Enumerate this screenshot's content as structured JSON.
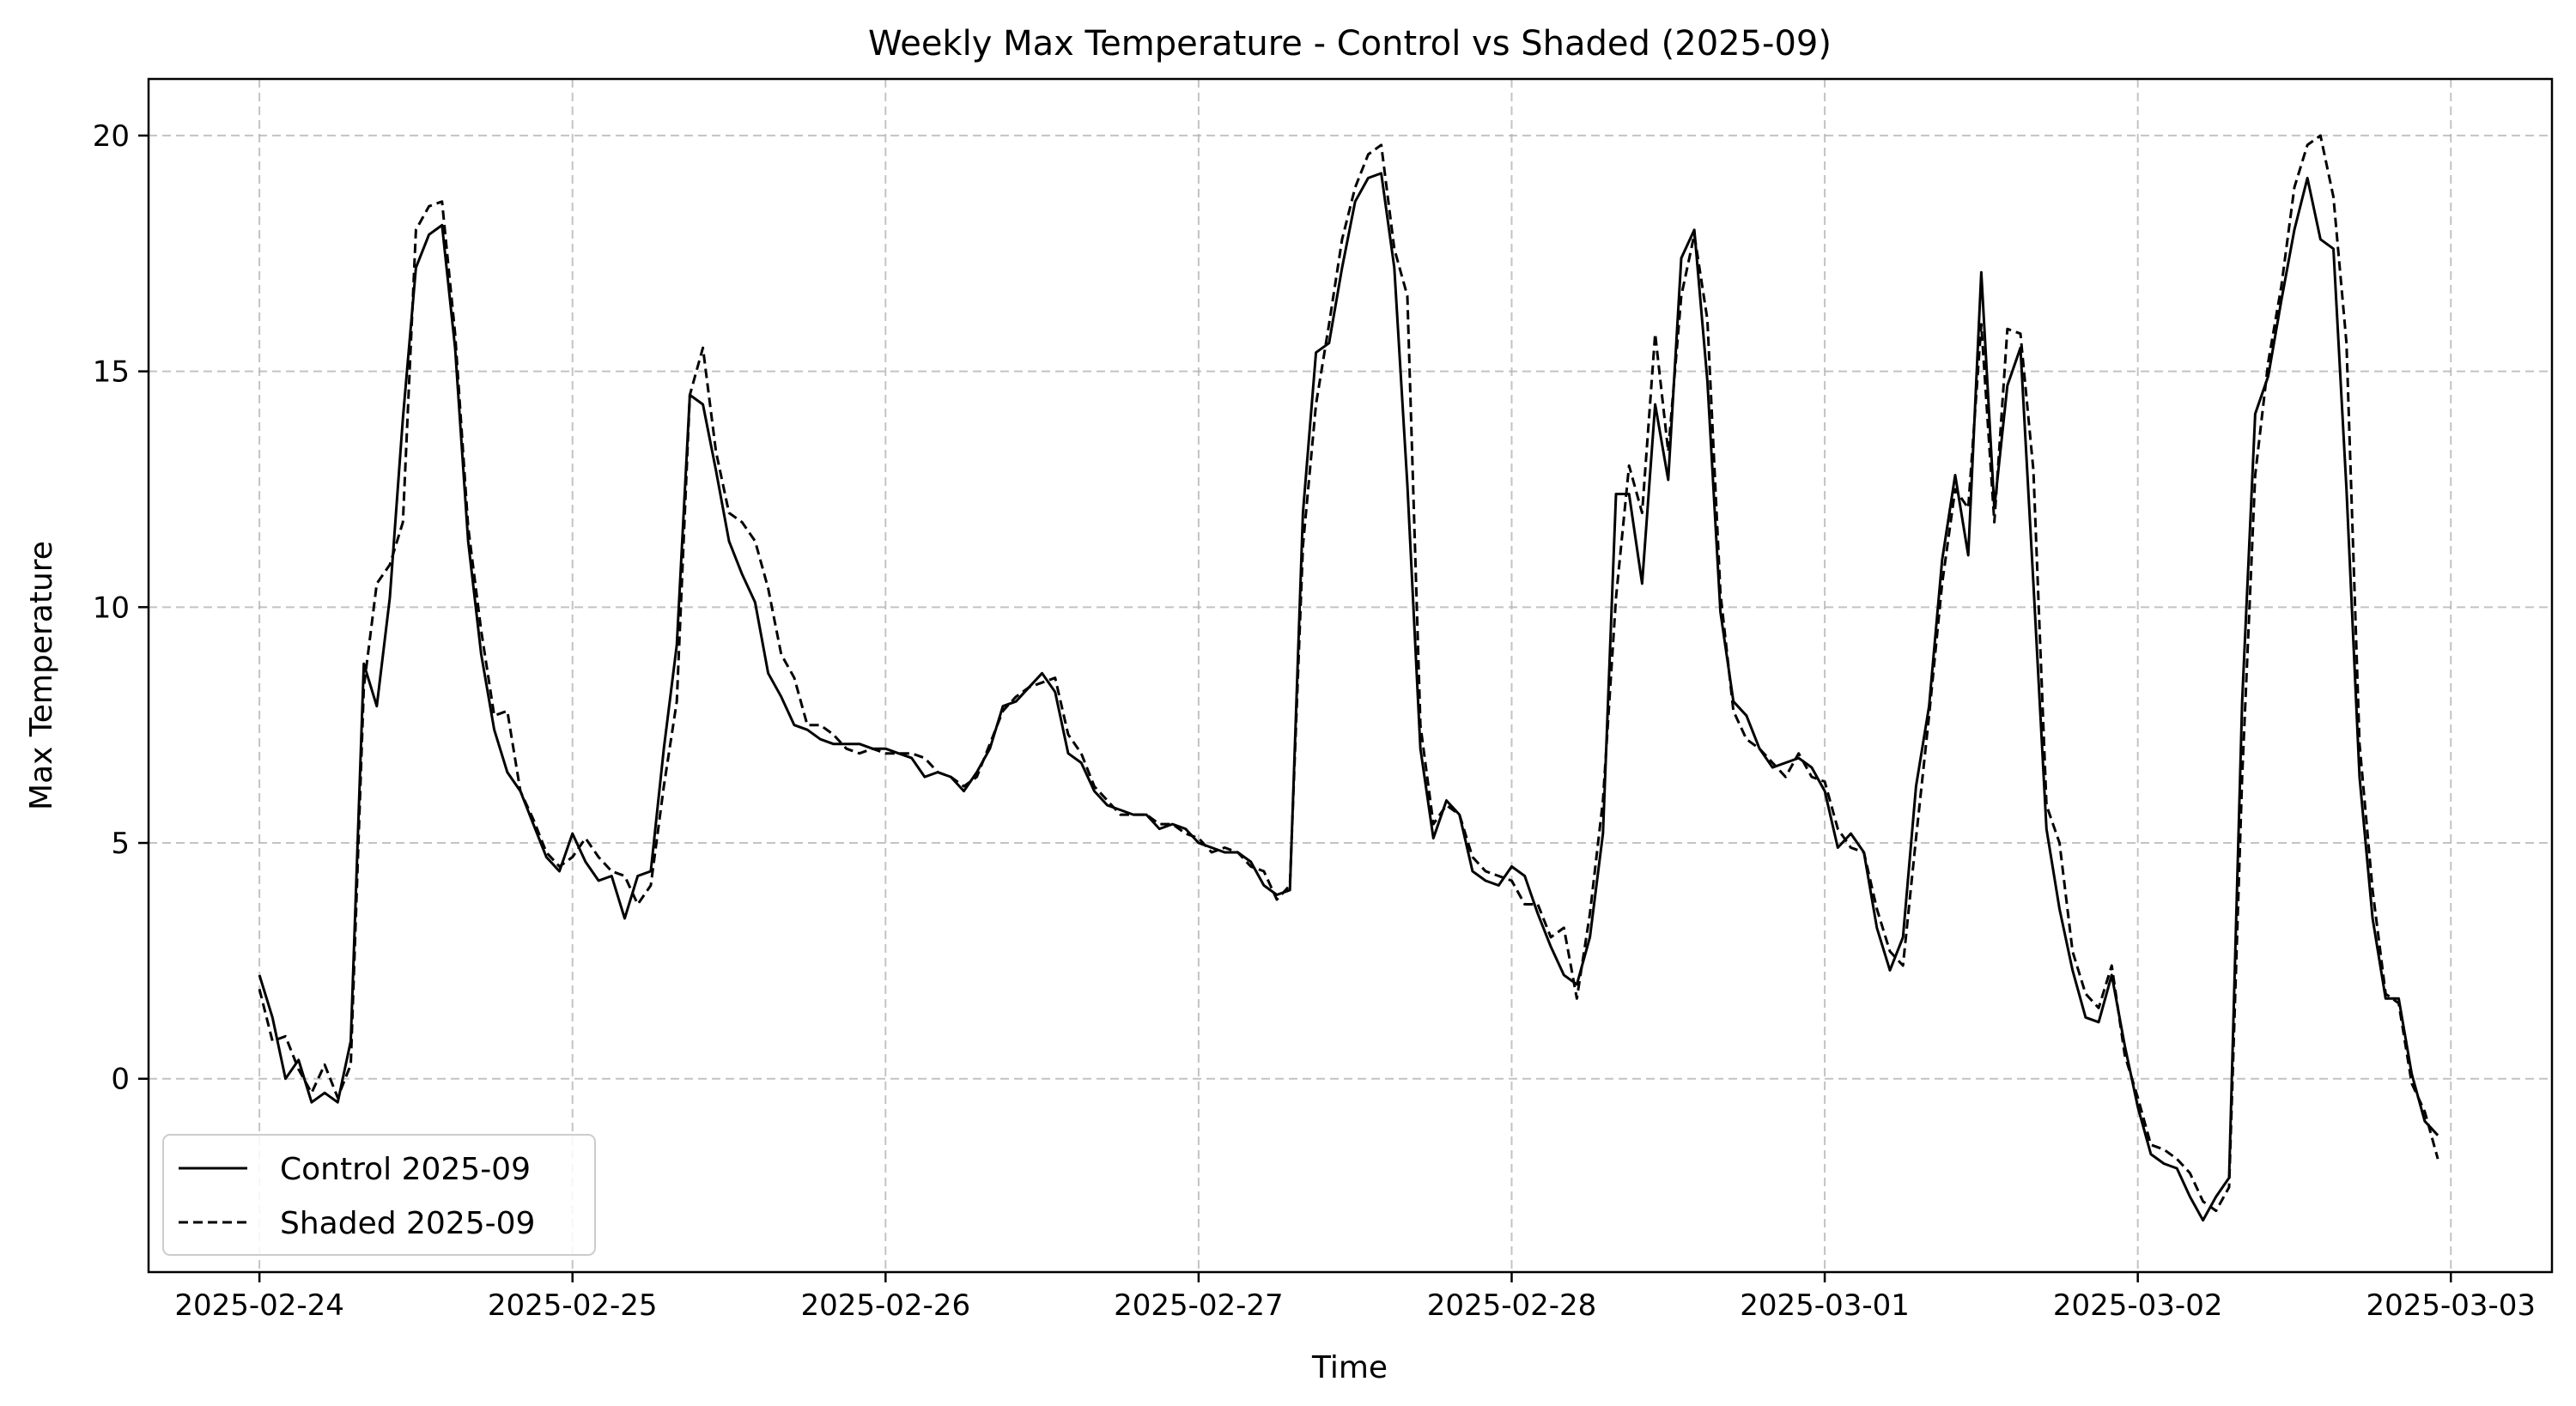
{
  "chart_data": {
    "type": "line",
    "title": "Weekly Max Temperature - Control vs Shaded (2025-09)",
    "xlabel": "Time",
    "ylabel": "Max Temperature",
    "x_ticks": [
      "2025-02-24",
      "2025-02-25",
      "2025-02-26",
      "2025-02-27",
      "2025-02-28",
      "2025-03-01",
      "2025-03-02",
      "2025-03-03"
    ],
    "y_ticks": [
      0,
      5,
      10,
      15,
      20
    ],
    "xlim": [
      "2025-02-23T15:30",
      "2025-03-03T07:45"
    ],
    "ylim": [
      -4.1,
      21.2
    ],
    "grid": true,
    "legend_position": "lower-left",
    "sampling": "hourly from 2025-02-24T00:00 to 2025-03-02T23:00",
    "series": [
      {
        "name": "Control 2025-09",
        "style": "solid",
        "color": "#000000",
        "values": [
          2.2,
          1.3,
          0.0,
          0.4,
          -0.5,
          -0.3,
          -0.5,
          0.8,
          8.8,
          7.9,
          10.2,
          14.0,
          17.2,
          17.9,
          18.1,
          15.5,
          11.4,
          9.0,
          7.4,
          6.5,
          6.1,
          5.4,
          4.7,
          4.4,
          5.2,
          4.6,
          4.2,
          4.3,
          3.4,
          4.3,
          4.4,
          7.0,
          9.2,
          14.5,
          14.3,
          12.9,
          11.4,
          10.7,
          10.1,
          8.6,
          8.1,
          7.5,
          7.4,
          7.2,
          7.1,
          7.1,
          7.1,
          7.0,
          7.0,
          6.9,
          6.8,
          6.4,
          6.5,
          6.4,
          6.1,
          6.5,
          7.0,
          7.9,
          8.0,
          8.3,
          8.6,
          8.2,
          6.9,
          6.7,
          6.1,
          5.8,
          5.7,
          5.6,
          5.6,
          5.3,
          5.4,
          5.3,
          5.0,
          4.9,
          4.8,
          4.8,
          4.6,
          4.1,
          3.9,
          4.0,
          12.0,
          15.4,
          15.6,
          17.2,
          18.6,
          19.1,
          19.2,
          17.2,
          12.6,
          7.0,
          5.1,
          5.9,
          5.6,
          4.4,
          4.2,
          4.1,
          4.5,
          4.3,
          3.5,
          2.8,
          2.2,
          2.0,
          3.0,
          5.2,
          12.4,
          12.4,
          10.5,
          14.3,
          12.7,
          17.4,
          18.0,
          14.8,
          9.9,
          8.0,
          7.7,
          7.0,
          6.6,
          6.7,
          6.8,
          6.6,
          6.1,
          4.9,
          5.2,
          4.8,
          3.2,
          2.3,
          3.0,
          6.2,
          7.9,
          11.0,
          12.8,
          11.1,
          17.1,
          12.1,
          14.7,
          15.5,
          10.5,
          5.3,
          3.6,
          2.3,
          1.3,
          1.2,
          2.2,
          0.7,
          -0.6,
          -1.6,
          -1.8,
          -1.9,
          -2.5,
          -3.0,
          -2.5,
          -2.1,
          8.0,
          14.1,
          14.9,
          16.5,
          18.0,
          19.1,
          17.8,
          17.6,
          12.5,
          6.4,
          3.4,
          1.7,
          1.7,
          0.1,
          -0.9,
          -1.2
        ]
      },
      {
        "name": "Shaded 2025-09",
        "style": "dashed",
        "color": "#000000",
        "values": [
          1.9,
          0.8,
          0.9,
          0.2,
          -0.3,
          0.3,
          -0.4,
          0.3,
          8.3,
          10.5,
          10.9,
          11.8,
          18.0,
          18.5,
          18.6,
          15.8,
          11.7,
          9.5,
          7.7,
          7.8,
          6.1,
          5.5,
          4.8,
          4.5,
          4.7,
          5.1,
          4.7,
          4.4,
          4.3,
          3.7,
          4.1,
          6.2,
          8.0,
          14.5,
          15.5,
          13.3,
          12.0,
          11.8,
          11.4,
          10.4,
          9.0,
          8.5,
          7.5,
          7.5,
          7.3,
          7.0,
          6.9,
          7.0,
          6.9,
          6.9,
          6.9,
          6.8,
          6.5,
          6.4,
          6.2,
          6.4,
          7.1,
          7.8,
          8.1,
          8.3,
          8.4,
          8.5,
          7.3,
          6.9,
          6.2,
          5.9,
          5.6,
          5.6,
          5.6,
          5.4,
          5.4,
          5.2,
          5.1,
          4.8,
          4.9,
          4.8,
          4.5,
          4.4,
          3.8,
          4.1,
          11.3,
          14.3,
          16.0,
          17.8,
          18.9,
          19.6,
          19.8,
          17.6,
          16.6,
          7.5,
          5.4,
          5.8,
          5.6,
          4.7,
          4.4,
          4.3,
          4.2,
          3.7,
          3.7,
          3.0,
          3.2,
          1.7,
          3.5,
          5.9,
          10.2,
          13.0,
          12.0,
          15.8,
          13.3,
          16.6,
          17.9,
          16.1,
          10.3,
          7.8,
          7.2,
          7.0,
          6.7,
          6.4,
          6.9,
          6.4,
          6.3,
          5.3,
          4.9,
          4.8,
          3.6,
          2.7,
          2.4,
          5.1,
          7.7,
          10.5,
          12.5,
          12.1,
          16.0,
          11.8,
          15.9,
          15.8,
          12.9,
          5.8,
          5.0,
          2.7,
          1.8,
          1.5,
          2.4,
          0.5,
          -0.4,
          -1.4,
          -1.5,
          -1.7,
          -2.0,
          -2.6,
          -2.8,
          -2.3,
          6.4,
          12.8,
          15.2,
          16.8,
          18.9,
          19.8,
          20.0,
          18.7,
          15.6,
          7.1,
          4.0,
          1.8,
          1.6,
          -0.1,
          -0.7,
          -1.7
        ]
      }
    ]
  }
}
